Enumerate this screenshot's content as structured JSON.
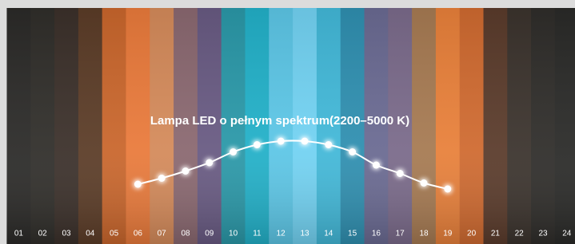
{
  "chart_data": {
    "type": "line",
    "title": "Lampa LED o pełnym spektrum(2200–5000 K)",
    "categories": [
      "01",
      "02",
      "03",
      "04",
      "05",
      "06",
      "07",
      "08",
      "09",
      "10",
      "11",
      "12",
      "13",
      "14",
      "15",
      "16",
      "17",
      "18",
      "19",
      "20",
      "21",
      "22",
      "23",
      "24"
    ],
    "values": [
      null,
      null,
      null,
      null,
      null,
      34,
      39,
      45,
      52,
      61,
      67,
      70,
      70,
      67,
      61,
      50,
      43,
      35,
      30,
      null,
      null,
      null,
      null,
      null
    ],
    "color": "#ffffff",
    "ylim": [
      0,
      100
    ]
  }
}
